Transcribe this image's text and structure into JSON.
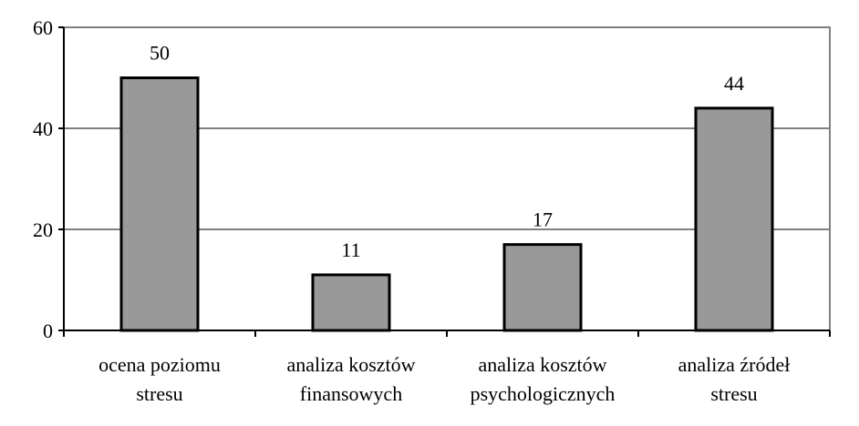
{
  "chart_data": {
    "type": "bar",
    "categories": [
      [
        "ocena poziomu",
        "stresu"
      ],
      [
        "analiza kosztów",
        "finansowych"
      ],
      [
        "analiza kosztów",
        "psychologicznych"
      ],
      [
        "analiza źródeł",
        "stresu"
      ]
    ],
    "values": [
      50,
      11,
      17,
      44
    ],
    "title": "",
    "xlabel": "",
    "ylabel": "",
    "ylim": [
      0,
      60
    ],
    "yticks": [
      0,
      20,
      40,
      60
    ],
    "grid": true,
    "legend": "none",
    "bar_color": "#999999",
    "bar_edge_color": "#000000",
    "plot_border_color": "#808080"
  }
}
